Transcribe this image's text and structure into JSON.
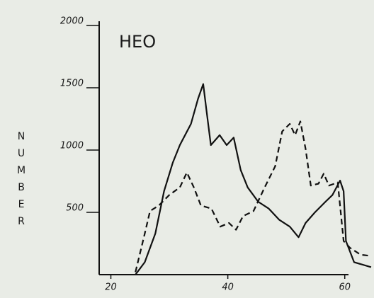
{
  "chart_data": {
    "type": "line",
    "title": "HEO",
    "y_label": "NUMBER",
    "xlim": [
      18,
      65
    ],
    "ylim": [
      0,
      2000
    ],
    "xticks": [
      20,
      40,
      60
    ],
    "yticks": [
      500,
      1000,
      1500,
      2000
    ],
    "series": [
      {
        "name": null,
        "color": "#111111",
        "style": "solid",
        "x": [
          24.2,
          25.8,
          27.6,
          29.1,
          30.6,
          31.8,
          33.7,
          34.9,
          35.8,
          36.4,
          37.1,
          38.6,
          39.8,
          41,
          42.2,
          43.4,
          45.2,
          47,
          48.8,
          50.6,
          52.1,
          53.3,
          54.9,
          56.7,
          57.9,
          59.2,
          59.8,
          60.2,
          61.6,
          64.5
        ],
        "values": [
          0,
          100,
          330,
          670,
          900,
          1040,
          1210,
          1410,
          1530,
          1300,
          1040,
          1120,
          1040,
          1100,
          840,
          700,
          585,
          530,
          440,
          385,
          300,
          415,
          500,
          585,
          640,
          755,
          670,
          270,
          100,
          60
        ]
      },
      {
        "name": null,
        "color": "#111111",
        "style": "dashed",
        "x": [
          24.2,
          25.8,
          26.7,
          28.2,
          30,
          31.8,
          33,
          34.2,
          35.4,
          37.2,
          38.7,
          40.2,
          41.4,
          42.6,
          44.4,
          46.3,
          48.1,
          49.3,
          50.6,
          51.5,
          52.4,
          53.3,
          54.2,
          55.5,
          56.4,
          57.3,
          58.8,
          59.8,
          60.9,
          62.7,
          64.5
        ],
        "values": [
          20,
          330,
          510,
          555,
          640,
          700,
          820,
          700,
          555,
          530,
          385,
          415,
          360,
          470,
          510,
          700,
          870,
          1150,
          1210,
          1120,
          1230,
          1010,
          715,
          730,
          810,
          715,
          740,
          270,
          215,
          160,
          150
        ]
      }
    ]
  }
}
